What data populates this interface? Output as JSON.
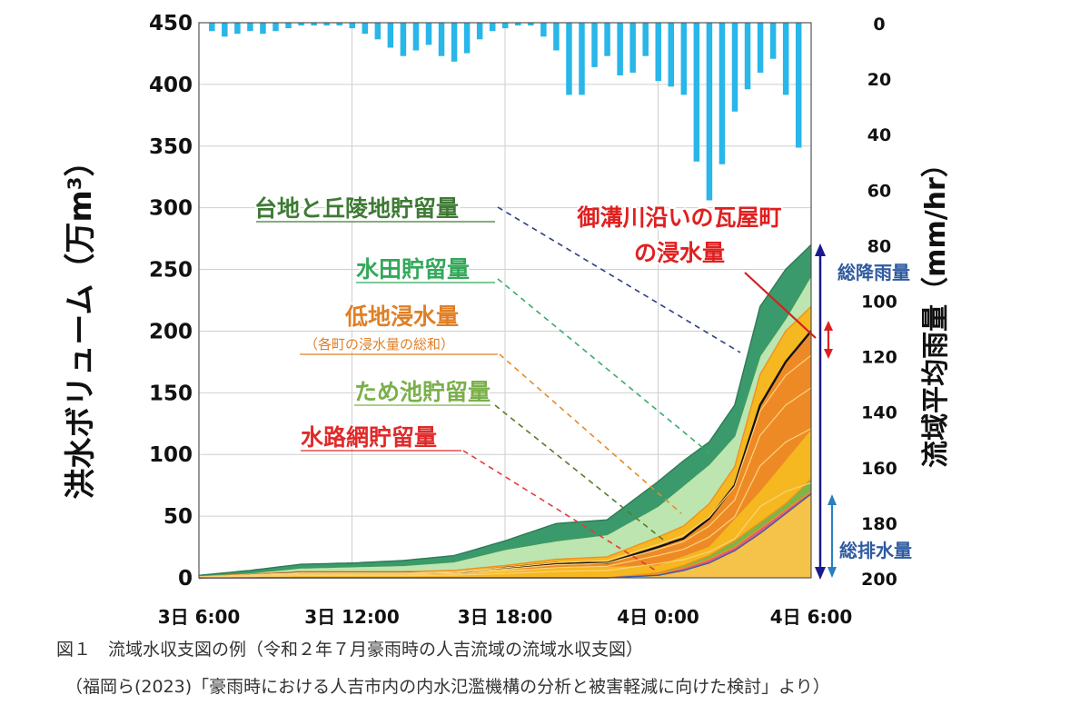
{
  "chart_data": {
    "type": "area",
    "y_left_label": "洪水ボリューム（万m³）",
    "y_left_ticks": [
      0,
      50,
      100,
      150,
      200,
      250,
      300,
      350,
      400,
      450
    ],
    "y_left_range": [
      0,
      450
    ],
    "y_right_label": "流域平均雨量（mm/hr）",
    "y_right_ticks": [
      0,
      20,
      40,
      60,
      80,
      100,
      120,
      140,
      160,
      180,
      200
    ],
    "y_right_range": [
      0,
      200
    ],
    "x_ticks": [
      "3日 6:00",
      "3日 12:00",
      "3日 18:00",
      "4日 0:00",
      "4日 6:00"
    ],
    "x_range_hours": [
      0,
      24
    ],
    "grid": true,
    "rainfall": {
      "name": "流域平均雨量",
      "color": "#29b6e8",
      "x": [
        0.5,
        1.0,
        1.5,
        2.0,
        2.5,
        3.0,
        3.5,
        4.0,
        4.5,
        5.0,
        5.5,
        6.0,
        6.5,
        7.0,
        7.5,
        8.0,
        8.5,
        9.0,
        9.5,
        10.0,
        10.5,
        11.0,
        11.5,
        12.0,
        12.5,
        13.0,
        13.5,
        14.0,
        14.5,
        15.0,
        15.5,
        16.0,
        16.5,
        17.0,
        17.5,
        18.0,
        18.5,
        19.0,
        19.5,
        20.0,
        20.5,
        21.0,
        21.5,
        22.0,
        22.5,
        23.0,
        23.5
      ],
      "values": [
        3,
        5,
        4,
        3,
        4,
        3,
        2,
        1,
        1,
        1,
        1,
        2,
        4,
        6,
        9,
        12,
        10,
        8,
        12,
        14,
        11,
        6,
        3,
        2,
        1,
        1,
        5,
        10,
        26,
        26,
        16,
        12,
        19,
        18,
        12,
        21,
        23,
        26,
        50,
        64,
        51,
        32,
        24,
        18,
        13,
        26,
        45
      ]
    },
    "series": [
      {
        "name": "台地と丘陵地貯留量",
        "color": "#3a9a6c",
        "x": [
          0,
          2,
          4,
          6,
          8,
          10,
          12,
          14,
          16,
          18,
          19,
          20,
          21,
          22,
          23,
          24
        ],
        "values": [
          2,
          6,
          11,
          12,
          14,
          18,
          30,
          44,
          47,
          78,
          95,
          110,
          140,
          220,
          250,
          270
        ]
      },
      {
        "name": "水田貯留量",
        "color": "#bde5b0",
        "x": [
          0,
          2,
          4,
          6,
          8,
          10,
          12,
          14,
          16,
          18,
          19,
          20,
          21,
          22,
          23,
          24
        ],
        "values": [
          1,
          4,
          8,
          9,
          10,
          13,
          23,
          30,
          35,
          58,
          75,
          92,
          115,
          180,
          210,
          245
        ]
      },
      {
        "name": "低地浸水量",
        "color": "#f5b820",
        "x": [
          0,
          2,
          4,
          6,
          8,
          10,
          12,
          14,
          16,
          18,
          19,
          20,
          21,
          22,
          23,
          24
        ],
        "values": [
          1,
          3,
          5,
          5,
          5,
          6,
          10,
          15,
          17,
          33,
          42,
          60,
          90,
          165,
          200,
          220
        ]
      },
      {
        "name": "御溝川沿いの瓦屋町の浸水量",
        "color": "#111111",
        "x": [
          0,
          2,
          4,
          6,
          8,
          10,
          12,
          14,
          16,
          18,
          19,
          20,
          21,
          22,
          23,
          24
        ],
        "values": [
          0,
          2,
          4,
          4,
          4,
          4,
          8,
          12,
          12,
          25,
          32,
          48,
          75,
          140,
          175,
          200
        ]
      },
      {
        "name": "ため池貯留量",
        "color": "#7ab648",
        "x": [
          0,
          4,
          8,
          12,
          16,
          18,
          19,
          20,
          21,
          22,
          23,
          24
        ],
        "values": [
          0,
          0,
          0,
          0,
          0,
          4,
          10,
          18,
          30,
          45,
          60,
          80
        ]
      },
      {
        "name": "水路網貯留量",
        "color": "#e35a7a",
        "x": [
          0,
          4,
          8,
          12,
          16,
          18,
          19,
          20,
          21,
          22,
          23,
          24
        ],
        "values": [
          0,
          0,
          0,
          0,
          0,
          3,
          8,
          15,
          25,
          40,
          55,
          70
        ]
      },
      {
        "name": "総排水量",
        "color": "#3b5ba6",
        "x": [
          0,
          4,
          8,
          12,
          16,
          18,
          19,
          20,
          21,
          22,
          23,
          24
        ],
        "values": [
          0,
          0,
          0,
          0,
          0,
          2,
          6,
          12,
          22,
          36,
          52,
          68
        ]
      }
    ],
    "annotations": {
      "highland": "台地と丘陵地貯留量",
      "paddy": "水田貯留量",
      "lowland": "低地浸水量",
      "lowland_sub": "（各町の浸水量の総和）",
      "pond": "ため池貯留量",
      "channel": "水路網貯留量",
      "kawaramachi_1": "御溝川沿いの瓦屋町",
      "kawaramachi_2": "の浸水量",
      "total_rain": "総降雨量",
      "total_drain": "総排水量"
    }
  },
  "captions": {
    "line1": "図１　流域水収支図の例（令和２年７月豪雨時の人吉流域の流域水収支図）",
    "line2": "（福岡ら(2023)「豪雨時における人吉市内の内水氾濫機構の分析と被害軽減に向けた検討」より）"
  }
}
